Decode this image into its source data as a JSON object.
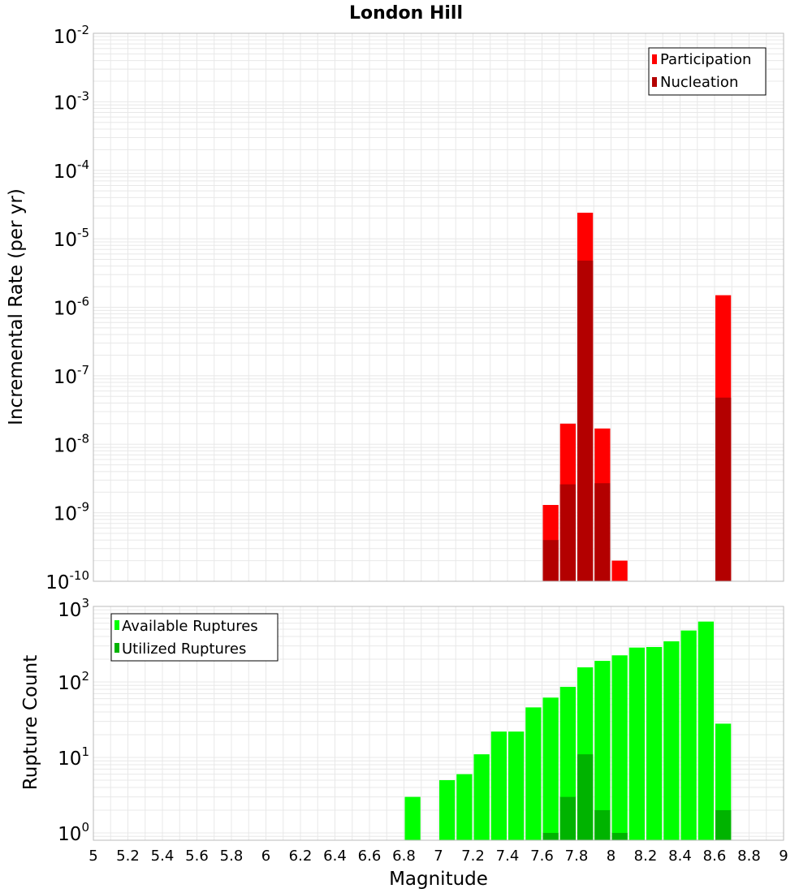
{
  "chart_data": [
    {
      "type": "bar",
      "title": "London Hill",
      "ylabel": "Incremental Rate (per yr)",
      "xlabel": "",
      "y_scale": "log",
      "ylim": [
        1e-10,
        0.01
      ],
      "xlim": [
        5,
        9
      ],
      "bar_width": 0.1,
      "grid": true,
      "legend_position": "top-right",
      "series": [
        {
          "name": "Participation",
          "color": "#ff0000",
          "x": [
            7.65,
            7.75,
            7.85,
            7.95,
            8.05,
            8.65
          ],
          "values": [
            1.3e-09,
            2e-08,
            2.4e-05,
            1.7e-08,
            2e-10,
            1.5e-06
          ]
        },
        {
          "name": "Nucleation",
          "color": "#b30000",
          "x": [
            7.65,
            7.75,
            7.85,
            7.95,
            8.65
          ],
          "values": [
            4e-10,
            2.6e-09,
            4.8e-06,
            2.7e-09,
            4.8e-08
          ]
        }
      ]
    },
    {
      "type": "bar",
      "ylabel": "Rupture Count",
      "xlabel": "Magnitude",
      "y_scale": "log",
      "ylim": [
        0.8,
        1000
      ],
      "xlim": [
        5,
        9
      ],
      "bar_width": 0.1,
      "grid": true,
      "legend_position": "top-left",
      "series": [
        {
          "name": "Available Ruptures",
          "color": "#00ff00",
          "x": [
            6.85,
            7.05,
            7.15,
            7.25,
            7.35,
            7.45,
            7.55,
            7.65,
            7.75,
            7.85,
            7.95,
            8.05,
            8.15,
            8.25,
            8.35,
            8.45,
            8.55,
            8.65
          ],
          "values": [
            3,
            5,
            6,
            11,
            22,
            22,
            46,
            62,
            86,
            156,
            190,
            225,
            285,
            290,
            345,
            480,
            630,
            28
          ]
        },
        {
          "name": "Utilized Ruptures",
          "color": "#00b300",
          "x": [
            7.65,
            7.75,
            7.85,
            7.95,
            8.05,
            8.65
          ],
          "values": [
            1,
            3,
            11,
            2,
            1,
            2
          ]
        }
      ]
    }
  ],
  "x_ticks": [
    "5",
    "5.2",
    "5.4",
    "5.6",
    "5.8",
    "6",
    "6.2",
    "6.4",
    "6.6",
    "6.8",
    "7",
    "7.2",
    "7.4",
    "7.6",
    "7.8",
    "8",
    "8.2",
    "8.4",
    "8.6",
    "8.8",
    "9"
  ],
  "top_y_ticks": [
    {
      "base": "10",
      "exp": "-2",
      "value": 0.01
    },
    {
      "base": "10",
      "exp": "-3",
      "value": 0.001
    },
    {
      "base": "10",
      "exp": "-4",
      "value": 0.0001
    },
    {
      "base": "10",
      "exp": "-5",
      "value": 1e-05
    },
    {
      "base": "10",
      "exp": "-6",
      "value": 1e-06
    },
    {
      "base": "10",
      "exp": "-7",
      "value": 1e-07
    },
    {
      "base": "10",
      "exp": "-8",
      "value": 1e-08
    },
    {
      "base": "10",
      "exp": "-9",
      "value": 1e-09
    },
    {
      "base": "10",
      "exp": "-10",
      "value": 1e-10
    }
  ],
  "bottom_y_ticks": [
    {
      "base": "10",
      "exp": "3",
      "value": 1000
    },
    {
      "base": "10",
      "exp": "2",
      "value": 100
    },
    {
      "base": "10",
      "exp": "1",
      "value": 10
    },
    {
      "base": "10",
      "exp": "0",
      "value": 1
    }
  ],
  "colors": {
    "grid": "#e8e8e8",
    "frame": "#bbbbbb"
  }
}
